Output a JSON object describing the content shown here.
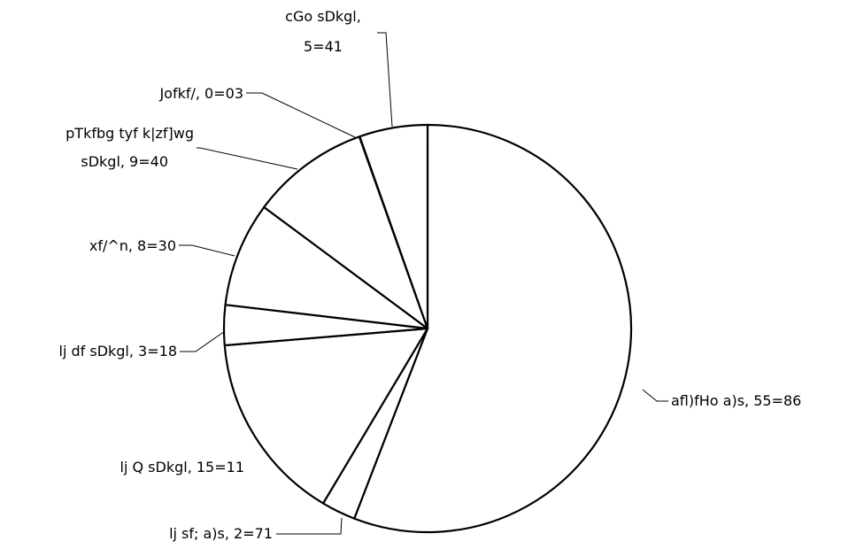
{
  "chart_data": {
    "type": "pie",
    "title": "",
    "slices": [
      {
        "label": "afl)fHo a)s, 55=86",
        "value": 55.86
      },
      {
        "label": "lj sf; a)s, 2=71",
        "value": 2.71
      },
      {
        "label": "lj Q sDkgl, 15=11",
        "value": 15.11
      },
      {
        "label": "lj df sDkgl, 3=18",
        "value": 3.18
      },
      {
        "label": "xf/^n, 8=30",
        "value": 8.3
      },
      {
        "label": "pTkfbg tyf k|zf]wg sDkgl, 9=40",
        "label_lines": [
          "pTkfbg tyf k|zf]wg",
          "sDkgl, 9=40"
        ],
        "value": 9.4
      },
      {
        "label": "Jofkf/, 0=03",
        "value": 0.03
      },
      {
        "label": "cGo sDkgl, 5=41",
        "label_lines": [
          "cGo sDkgl,",
          "5=41"
        ],
        "value": 5.41
      }
    ],
    "colors": {
      "fill": "#ffffff",
      "stroke": "#000000"
    },
    "legend": "none",
    "grid": false
  }
}
